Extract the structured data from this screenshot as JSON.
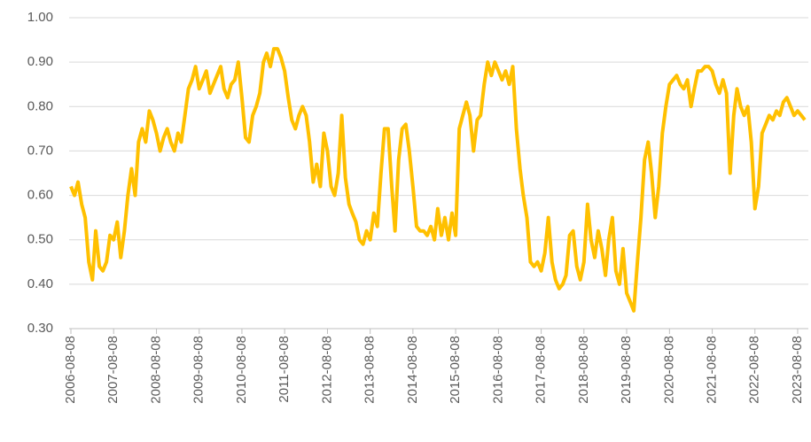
{
  "chart_data": {
    "type": "line",
    "x": [
      "2006-08-08",
      "2006-09-08",
      "2006-10-08",
      "2006-11-08",
      "2006-12-08",
      "2007-01-08",
      "2007-02-08",
      "2007-03-08",
      "2007-04-08",
      "2007-05-08",
      "2007-06-08",
      "2007-07-08",
      "2007-08-08",
      "2007-09-08",
      "2007-10-08",
      "2007-11-08",
      "2007-12-08",
      "2008-01-08",
      "2008-02-08",
      "2008-03-08",
      "2008-04-08",
      "2008-05-08",
      "2008-06-08",
      "2008-07-08",
      "2008-08-08",
      "2008-09-08",
      "2008-10-08",
      "2008-11-08",
      "2008-12-08",
      "2009-01-08",
      "2009-02-08",
      "2009-03-08",
      "2009-04-08",
      "2009-05-08",
      "2009-06-08",
      "2009-07-08",
      "2009-08-08",
      "2009-09-08",
      "2009-10-08",
      "2009-11-08",
      "2009-12-08",
      "2010-01-08",
      "2010-02-08",
      "2010-03-08",
      "2010-04-08",
      "2010-05-08",
      "2010-06-08",
      "2010-07-08",
      "2010-08-08",
      "2010-09-08",
      "2010-10-08",
      "2010-11-08",
      "2010-12-08",
      "2011-01-08",
      "2011-02-08",
      "2011-03-08",
      "2011-04-08",
      "2011-05-08",
      "2011-06-08",
      "2011-07-08",
      "2011-08-08",
      "2011-09-08",
      "2011-10-08",
      "2011-11-08",
      "2011-12-08",
      "2012-01-08",
      "2012-02-08",
      "2012-03-08",
      "2012-04-08",
      "2012-05-08",
      "2012-06-08",
      "2012-07-08",
      "2012-08-08",
      "2012-09-08",
      "2012-10-08",
      "2012-11-08",
      "2012-12-08",
      "2013-01-08",
      "2013-02-08",
      "2013-03-08",
      "2013-04-08",
      "2013-05-08",
      "2013-06-08",
      "2013-07-08",
      "2013-08-08",
      "2013-09-08",
      "2013-10-08",
      "2013-11-08",
      "2013-12-08",
      "2014-01-08",
      "2014-02-08",
      "2014-03-08",
      "2014-04-08",
      "2014-05-08",
      "2014-06-08",
      "2014-07-08",
      "2014-08-08",
      "2014-09-08",
      "2014-10-08",
      "2014-11-08",
      "2014-12-08",
      "2015-01-08",
      "2015-02-08",
      "2015-03-08",
      "2015-04-08",
      "2015-05-08",
      "2015-06-08",
      "2015-07-08",
      "2015-08-08",
      "2015-09-08",
      "2015-10-08",
      "2015-11-08",
      "2015-12-08",
      "2016-01-08",
      "2016-02-08",
      "2016-03-08",
      "2016-04-08",
      "2016-05-08",
      "2016-06-08",
      "2016-07-08",
      "2016-08-08",
      "2016-09-08",
      "2016-10-08",
      "2016-11-08",
      "2016-12-08",
      "2017-01-08",
      "2017-02-08",
      "2017-03-08",
      "2017-04-08",
      "2017-05-08",
      "2017-06-08",
      "2017-07-08",
      "2017-08-08",
      "2017-09-08",
      "2017-10-08",
      "2017-11-08",
      "2017-12-08",
      "2018-01-08",
      "2018-02-08",
      "2018-03-08",
      "2018-04-08",
      "2018-05-08",
      "2018-06-08",
      "2018-07-08",
      "2018-08-08",
      "2018-09-08",
      "2018-10-08",
      "2018-11-08",
      "2018-12-08",
      "2019-01-08",
      "2019-02-08",
      "2019-03-08",
      "2019-04-08",
      "2019-05-08",
      "2019-06-08",
      "2019-07-08",
      "2019-08-08",
      "2019-09-08",
      "2019-10-08",
      "2019-11-08",
      "2019-12-08",
      "2020-01-08",
      "2020-02-08",
      "2020-03-08",
      "2020-04-08",
      "2020-05-08",
      "2020-06-08",
      "2020-07-08",
      "2020-08-08",
      "2020-09-08",
      "2020-10-08",
      "2020-11-08",
      "2020-12-08",
      "2021-01-08",
      "2021-02-08",
      "2021-03-08",
      "2021-04-08",
      "2021-05-08",
      "2021-06-08",
      "2021-07-08",
      "2021-08-08",
      "2021-09-08",
      "2021-10-08",
      "2021-11-08",
      "2021-12-08",
      "2022-01-08",
      "2022-02-08",
      "2022-03-08",
      "2022-04-08",
      "2022-05-08",
      "2022-06-08",
      "2022-07-08",
      "2022-08-08",
      "2022-09-08",
      "2022-10-08",
      "2022-11-08",
      "2022-12-08",
      "2023-01-08",
      "2023-02-08",
      "2023-03-08",
      "2023-04-08",
      "2023-05-08",
      "2023-06-08",
      "2023-07-08",
      "2023-08-08",
      "2023-09-08",
      "2023-10-08"
    ],
    "series": [
      {
        "color": "#FFC000",
        "values": [
          0.62,
          0.6,
          0.63,
          0.58,
          0.55,
          0.45,
          0.41,
          0.52,
          0.44,
          0.43,
          0.45,
          0.51,
          0.5,
          0.54,
          0.46,
          0.52,
          0.6,
          0.66,
          0.6,
          0.72,
          0.75,
          0.72,
          0.79,
          0.77,
          0.74,
          0.7,
          0.73,
          0.75,
          0.72,
          0.7,
          0.74,
          0.72,
          0.78,
          0.84,
          0.86,
          0.89,
          0.84,
          0.86,
          0.88,
          0.83,
          0.85,
          0.87,
          0.89,
          0.84,
          0.82,
          0.85,
          0.86,
          0.9,
          0.82,
          0.73,
          0.72,
          0.78,
          0.8,
          0.83,
          0.9,
          0.92,
          0.89,
          0.93,
          0.93,
          0.91,
          0.88,
          0.82,
          0.77,
          0.75,
          0.78,
          0.8,
          0.78,
          0.72,
          0.63,
          0.67,
          0.62,
          0.74,
          0.7,
          0.62,
          0.6,
          0.65,
          0.78,
          0.64,
          0.58,
          0.56,
          0.54,
          0.5,
          0.49,
          0.52,
          0.5,
          0.56,
          0.53,
          0.65,
          0.75,
          0.75,
          0.62,
          0.52,
          0.68,
          0.75,
          0.76,
          0.7,
          0.62,
          0.53,
          0.52,
          0.52,
          0.51,
          0.53,
          0.5,
          0.57,
          0.51,
          0.55,
          0.5,
          0.56,
          0.51,
          0.75,
          0.78,
          0.81,
          0.78,
          0.7,
          0.77,
          0.78,
          0.85,
          0.9,
          0.87,
          0.9,
          0.88,
          0.86,
          0.88,
          0.85,
          0.89,
          0.75,
          0.66,
          0.6,
          0.55,
          0.45,
          0.44,
          0.45,
          0.43,
          0.47,
          0.55,
          0.45,
          0.41,
          0.39,
          0.4,
          0.42,
          0.51,
          0.52,
          0.44,
          0.41,
          0.45,
          0.58,
          0.5,
          0.46,
          0.52,
          0.48,
          0.42,
          0.5,
          0.55,
          0.43,
          0.4,
          0.48,
          0.38,
          0.36,
          0.34,
          0.45,
          0.55,
          0.68,
          0.72,
          0.65,
          0.55,
          0.62,
          0.74,
          0.8,
          0.85,
          0.86,
          0.87,
          0.85,
          0.84,
          0.86,
          0.8,
          0.84,
          0.88,
          0.88,
          0.89,
          0.89,
          0.88,
          0.85,
          0.83,
          0.86,
          0.83,
          0.65,
          0.78,
          0.84,
          0.8,
          0.78,
          0.8,
          0.72,
          0.57,
          0.62,
          0.74,
          0.76,
          0.78,
          0.77,
          0.79,
          0.78,
          0.81,
          0.82,
          0.8,
          0.78,
          0.79,
          0.78,
          0.77
        ]
      }
    ],
    "xlim": [
      "2006-08-08",
      "2023-10-08"
    ],
    "xticks": [
      "2006-08-08",
      "2007-08-08",
      "2008-08-08",
      "2009-08-08",
      "2010-08-08",
      "2011-08-08",
      "2012-08-08",
      "2013-08-08",
      "2014-08-08",
      "2015-08-08",
      "2016-08-08",
      "2017-08-08",
      "2018-08-08",
      "2019-08-08",
      "2020-08-08",
      "2021-08-08",
      "2022-08-08",
      "2023-08-08"
    ],
    "ylim": [
      0.3,
      1.0
    ],
    "yticks": [
      {
        "value": 0.3,
        "label": "0.30"
      },
      {
        "value": 0.4,
        "label": "0.40"
      },
      {
        "value": 0.5,
        "label": "0.50"
      },
      {
        "value": 0.6,
        "label": "0.60"
      },
      {
        "value": 0.7,
        "label": "0.70"
      },
      {
        "value": 0.8,
        "label": "0.80"
      },
      {
        "value": 0.9,
        "label": "0.90"
      },
      {
        "value": 1.0,
        "label": "1.00"
      }
    ],
    "grid": true
  }
}
